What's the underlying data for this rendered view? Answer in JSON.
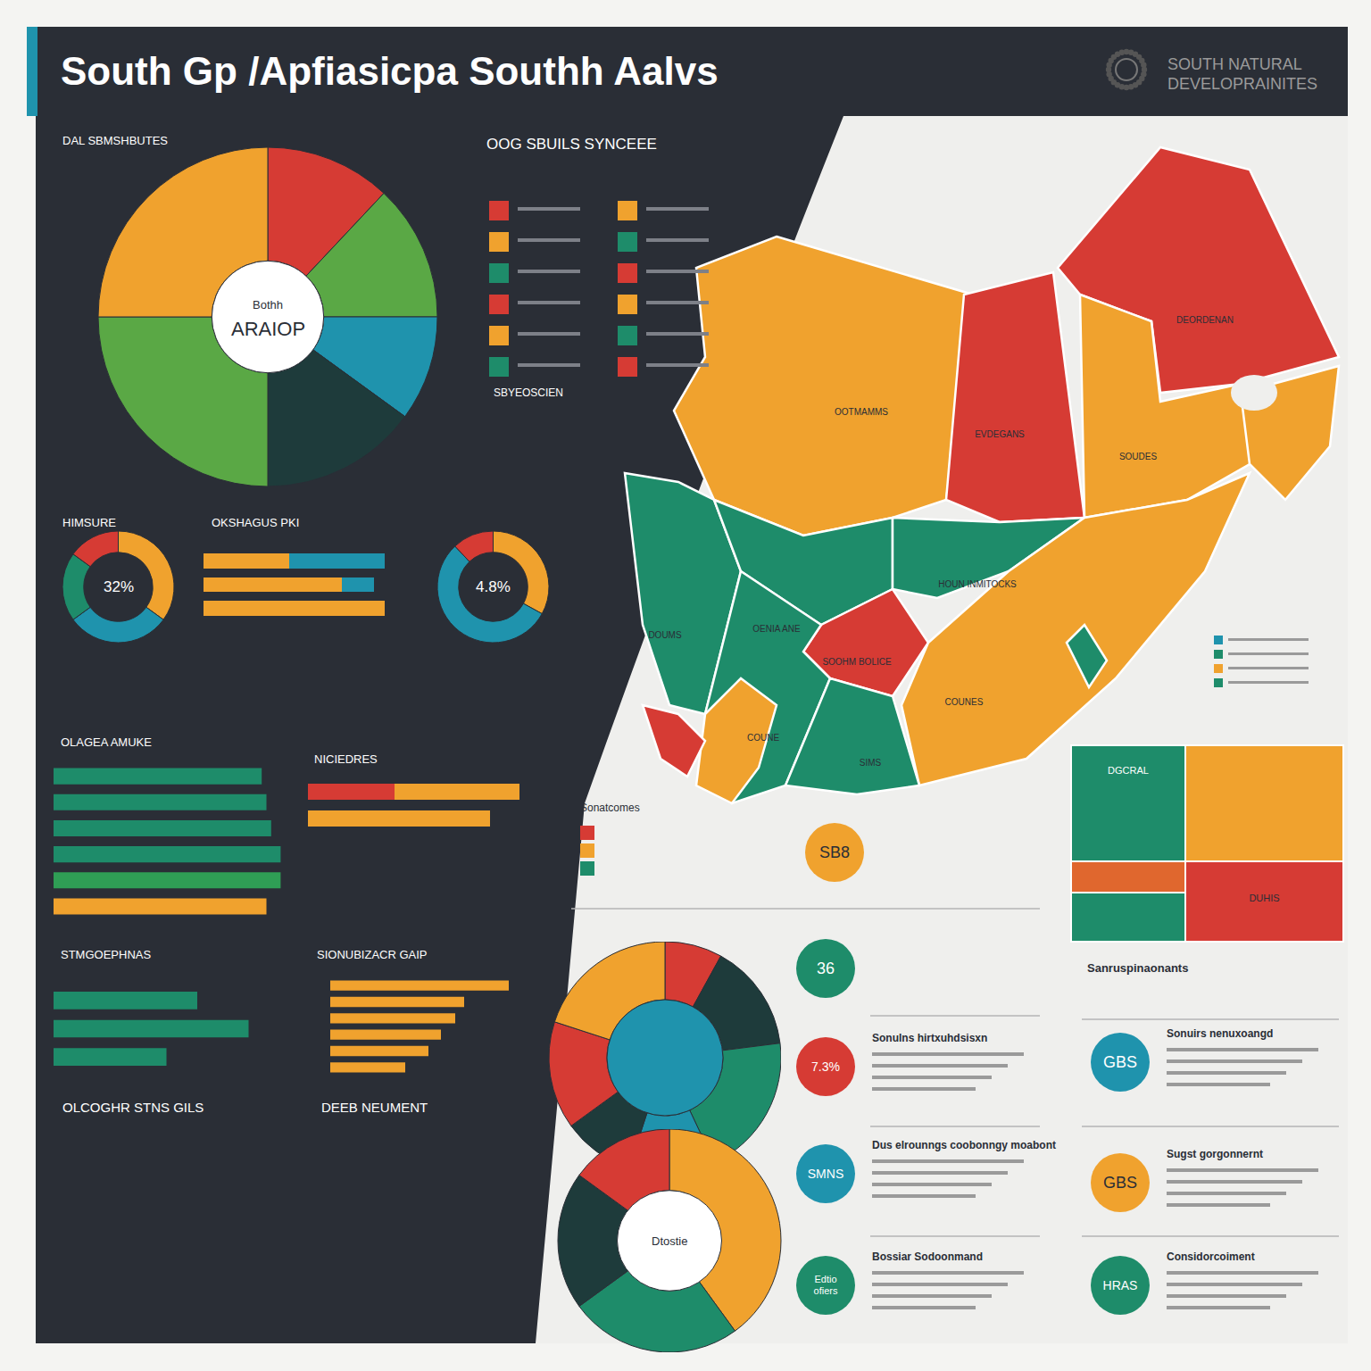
{
  "header": {
    "title": "South Gp /Apfiasicpa Southh Aalvs",
    "logo": [
      "SOUTH NATURAL",
      "DEVELOPRAINITES"
    ]
  },
  "headings": [
    "OOG SBUILS SYNCEEE",
    "SBYEOSCIEN",
    "Sanruspinaonants",
    "OLCOGHR STNS GILS",
    "DEEB NEUMENT",
    "Sonatcomes"
  ],
  "chart_data": [
    {
      "type": "pie",
      "title": "DAL SBMSHBUTES",
      "annotations": [
        "Bothh",
        "ARAIOP"
      ],
      "categories": [
        null,
        null,
        null,
        null,
        null,
        null
      ],
      "values": [
        12,
        13,
        10,
        15,
        25,
        25
      ],
      "colors": [
        "#d63b34",
        "#5aa845",
        "#1f93ad",
        "#1e3b3b",
        "#5aa845",
        "#f0a22e"
      ]
    },
    {
      "type": "pie",
      "title": "HIMSURE",
      "annotations": [
        "32%"
      ],
      "categories": [
        null,
        null,
        null,
        null
      ],
      "values": [
        35,
        30,
        20,
        15
      ],
      "colors": [
        "#f0a22e",
        "#1f93ad",
        "#1e8c6a",
        "#d63b34"
      ]
    },
    {
      "type": "bar",
      "orientation": "horizontal",
      "stacked": true,
      "title": "OKSHAGUS PKI",
      "categories": [
        null,
        null,
        null
      ],
      "xlim": [
        0,
        90
      ],
      "tick_labels": false,
      "series": [
        {
          "color": "#f0a22e",
          "values": [
            40,
            65,
            85
          ]
        },
        {
          "color": "#1f93ad",
          "values": [
            45,
            15,
            0
          ]
        }
      ]
    },
    {
      "type": "pie",
      "annotations": [
        "4.8%"
      ],
      "categories": [
        null,
        null,
        null
      ],
      "values": [
        33,
        55,
        12
      ],
      "colors": [
        "#f0a22e",
        "#1f93ad",
        "#d63b34"
      ]
    },
    {
      "type": "bar",
      "orientation": "horizontal",
      "title": "OLAGEA AMUKE",
      "categories": [
        null,
        null,
        null,
        null,
        null,
        null
      ],
      "xlim": [
        0,
        100
      ],
      "tick_labels": false,
      "values": [
        88,
        90,
        92,
        96,
        96,
        90
      ],
      "colors": [
        "#1e8c6a",
        "#1e8c6a",
        "#1e8c6a",
        "#1e8c6a",
        "#2f9e55",
        "#f0a22e"
      ]
    },
    {
      "type": "bar",
      "orientation": "horizontal",
      "stacked": true,
      "title": "NICIEDRES",
      "categories": [
        null,
        null
      ],
      "xlim": [
        0,
        100
      ],
      "tick_labels": false,
      "series": [
        {
          "colors": [
            "#d63b34",
            "#f0a22e"
          ],
          "values": [
            38,
            36
          ]
        },
        {
          "color": "#f0a22e",
          "values": [
            55,
            44
          ]
        }
      ]
    },
    {
      "type": "bar",
      "orientation": "horizontal",
      "title": "STMGOEPHNAS",
      "categories": [
        null,
        null,
        null
      ],
      "xlim": [
        0,
        100
      ],
      "tick_labels": false,
      "values": [
        70,
        95,
        55
      ],
      "color": "#1e8c6a"
    },
    {
      "type": "bar",
      "orientation": "horizontal",
      "title": "SIONUBIZACR GAIP",
      "categories": [
        null,
        null,
        null,
        null,
        null,
        null
      ],
      "xlim": [
        0,
        100
      ],
      "tick_labels": false,
      "values": [
        100,
        75,
        70,
        62,
        55,
        42
      ],
      "color": "#f0a22e"
    },
    {
      "type": "pie",
      "categories": [
        null,
        null,
        null,
        null,
        null,
        null,
        null
      ],
      "values": [
        8,
        15,
        20,
        12,
        10,
        15,
        20
      ],
      "colors": [
        "#d63b34",
        "#1e3b3b",
        "#1e8c6a",
        "#1f93ad",
        "#1e3b3b",
        "#d63b34",
        "#f0a22e"
      ]
    },
    {
      "type": "pie",
      "annotations": [
        "Dtostie"
      ],
      "categories": [
        null,
        null,
        null,
        null
      ],
      "values": [
        40,
        25,
        20,
        15
      ],
      "colors": [
        "#f0a22e",
        "#1e8c6a",
        "#1e3b3b",
        "#d63b34"
      ]
    }
  ],
  "map": {
    "regions": [
      {
        "label": "OOTMAMMS",
        "color": "#f0a22e"
      },
      {
        "label": "EVDEGANS",
        "color": "#d63b34"
      },
      {
        "label": "DEORDENAN",
        "color": "#d63b34"
      },
      {
        "label": "SOUDES",
        "color": "#f0a22e"
      },
      {
        "label": null,
        "color": "#f0a22e"
      },
      {
        "label": "DOUMS",
        "color": "#1e8c6a"
      },
      {
        "label": "OENIA ANE",
        "color": "#1e8c6a"
      },
      {
        "label": "HOUN INMITOCKS",
        "color": "#1e8c6a"
      },
      {
        "label": "SOOHM BOLICE",
        "color": "#d63b34"
      },
      {
        "label": "COUNES",
        "color": "#f0a22e"
      },
      {
        "label": "COUNE",
        "color": "#1e8c6a"
      },
      {
        "label": null,
        "color": "#f0a22e"
      },
      {
        "label": null,
        "color": "#d63b34"
      },
      {
        "label": "SIMS",
        "color": "#1e8c6a"
      },
      {
        "label": null,
        "color": "#1e8c6a"
      }
    ]
  },
  "blocks": [
    {
      "label": "DGCRAL",
      "color": "#1e8c6a"
    },
    {
      "label": null,
      "color": "#f0a22e"
    },
    {
      "label": null,
      "color": "#e0672e"
    },
    {
      "label": "DUHIS",
      "color": "#d63b34"
    },
    {
      "label": null,
      "color": "#1e8c6a"
    }
  ],
  "stats": [
    {
      "label": "36",
      "color": "#1e8c6a"
    },
    {
      "label": "7.3%",
      "color": "#d63b34",
      "title": "Sonulns hirtxuhdsisxn"
    },
    {
      "label": "GBS",
      "color": "#1f93ad",
      "title": "Sonuirs nenuxoangd"
    },
    {
      "label": "SMNS",
      "color": "#1f93ad",
      "title": "Dus elrounngs coobonngy moabont"
    },
    {
      "label": "GBS",
      "color": "#f0a22e",
      "title": "Sugst gorgonnernt"
    },
    {
      "label": "Edtio ofiers",
      "color": "#1e8c6a",
      "title": "Bossiar Sodoonmand"
    },
    {
      "label": "HRAS",
      "color": "#1e8c6a",
      "title": "Considorcoiment"
    },
    {
      "label": "SB8",
      "color": "#f0a22e"
    }
  ]
}
